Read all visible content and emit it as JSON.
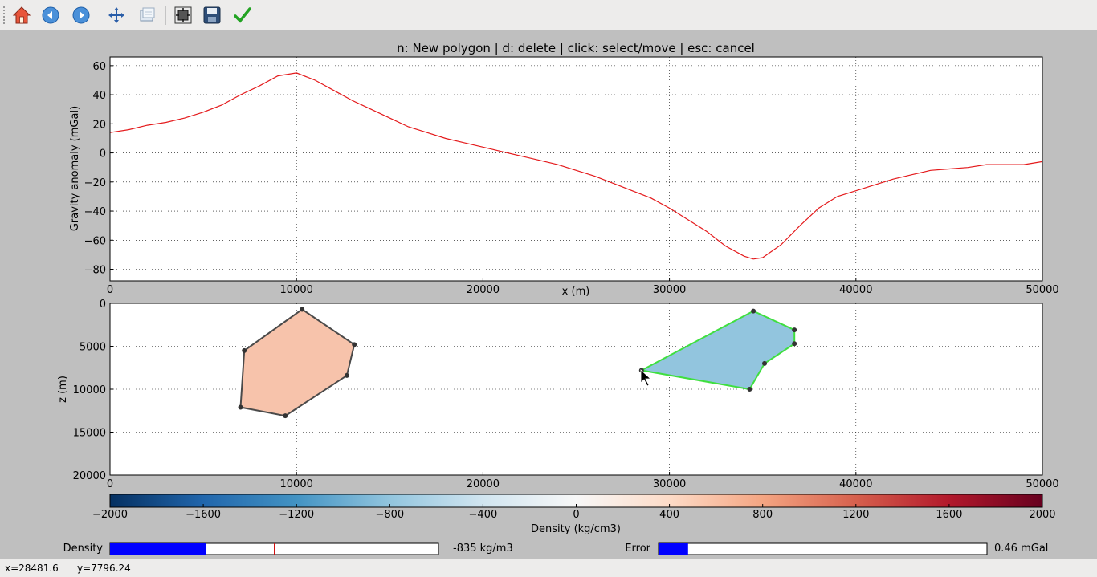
{
  "toolbar": {
    "buttons": [
      {
        "name": "home-icon"
      },
      {
        "name": "back-icon"
      },
      {
        "name": "forward-icon"
      },
      {
        "name": "pan-icon"
      },
      {
        "name": "zoom-icon"
      },
      {
        "name": "configure-subplots-icon"
      },
      {
        "name": "save-icon"
      },
      {
        "name": "finish-icon"
      }
    ]
  },
  "figure": {
    "title": "n: New polygon | d: delete | click: select/move | esc: cancel"
  },
  "chart_data": [
    {
      "type": "line",
      "title": "n: New polygon | d: delete | click: select/move | esc: cancel",
      "xlabel": "x (m)",
      "ylabel": "Gravity anomaly (mGal)",
      "xlim": [
        0,
        50000
      ],
      "ylim": [
        -88,
        66
      ],
      "xticks": [
        "0",
        "10000",
        "20000",
        "30000",
        "40000",
        "50000"
      ],
      "yticks": [
        "60",
        "40",
        "20",
        "0",
        "−20",
        "−40",
        "−60",
        "−80"
      ],
      "grid": true,
      "color": "#e41a1c",
      "x": [
        0,
        1000,
        2000,
        3000,
        4000,
        5000,
        6000,
        7000,
        8000,
        9000,
        10000,
        11000,
        12000,
        13000,
        14000,
        15000,
        16000,
        17000,
        18000,
        19000,
        20000,
        21000,
        22000,
        23000,
        24000,
        25000,
        26000,
        27000,
        28000,
        29000,
        30000,
        31000,
        32000,
        33000,
        34000,
        34500,
        35000,
        36000,
        37000,
        38000,
        39000,
        40000,
        41000,
        42000,
        43000,
        44000,
        45000,
        46000,
        47000,
        48000,
        49000,
        50000
      ],
      "y": [
        14,
        16,
        19,
        21,
        24,
        28,
        33,
        40,
        46,
        53,
        55,
        50,
        43,
        36,
        30,
        24,
        18,
        14,
        10,
        7,
        4,
        1,
        -2,
        -5,
        -8,
        -12,
        -16,
        -21,
        -26,
        -31,
        -38,
        -46,
        -54,
        -64,
        -71,
        -73,
        -72,
        -63,
        -50,
        -38,
        -30,
        -26,
        -22,
        -18,
        -15,
        -12,
        -11,
        -10,
        -8,
        -8,
        -8,
        -6
      ]
    },
    {
      "type": "scatter",
      "xlabel": "",
      "ylabel": "z (m)",
      "xlim": [
        0,
        50000
      ],
      "ylim": [
        20000,
        0
      ],
      "xticks": [
        "0",
        "10000",
        "20000",
        "30000",
        "40000",
        "50000"
      ],
      "yticks": [
        "0",
        "5000",
        "10000",
        "15000",
        "20000"
      ],
      "grid": true,
      "polygons": [
        {
          "fill": "#f7c3ab",
          "edge": "#4a4a4a",
          "vertices_x": [
            10300,
            13100,
            12700,
            9400,
            7000,
            7200
          ],
          "vertices_y": [
            700,
            4800,
            8400,
            13100,
            12100,
            5500
          ]
        },
        {
          "fill": "#92c5de",
          "edge": "#3fdf3f",
          "vertices_x": [
            34500,
            36700,
            36700,
            35100,
            34300,
            28500
          ],
          "vertices_y": [
            900,
            3100,
            4700,
            7000,
            10000,
            7800
          ]
        }
      ]
    },
    {
      "type": "heatmap",
      "xlabel": "Density (kg/cm3)",
      "range": [
        -2000,
        2000
      ],
      "ticks": [
        "−2000",
        "−1600",
        "−1200",
        "−800",
        "−400",
        "0",
        "400",
        "800",
        "1200",
        "1600",
        "2000"
      ],
      "colormap_stops": [
        "#053061",
        "#2166ac",
        "#4393c3",
        "#92c5de",
        "#d1e5f0",
        "#f7f7f7",
        "#fddbc7",
        "#f4a582",
        "#d6604d",
        "#b2182b",
        "#67001f"
      ]
    }
  ],
  "controls": {
    "density": {
      "label": "Density",
      "value": -835,
      "min": -2000,
      "max": 2000,
      "value_text": "-835 kg/m3"
    },
    "error": {
      "label": "Error",
      "fraction": 0.09,
      "value_text": "0.46 mGal"
    }
  },
  "status": {
    "x_text": "x=28481.6",
    "y_text": "y=7796.24"
  }
}
